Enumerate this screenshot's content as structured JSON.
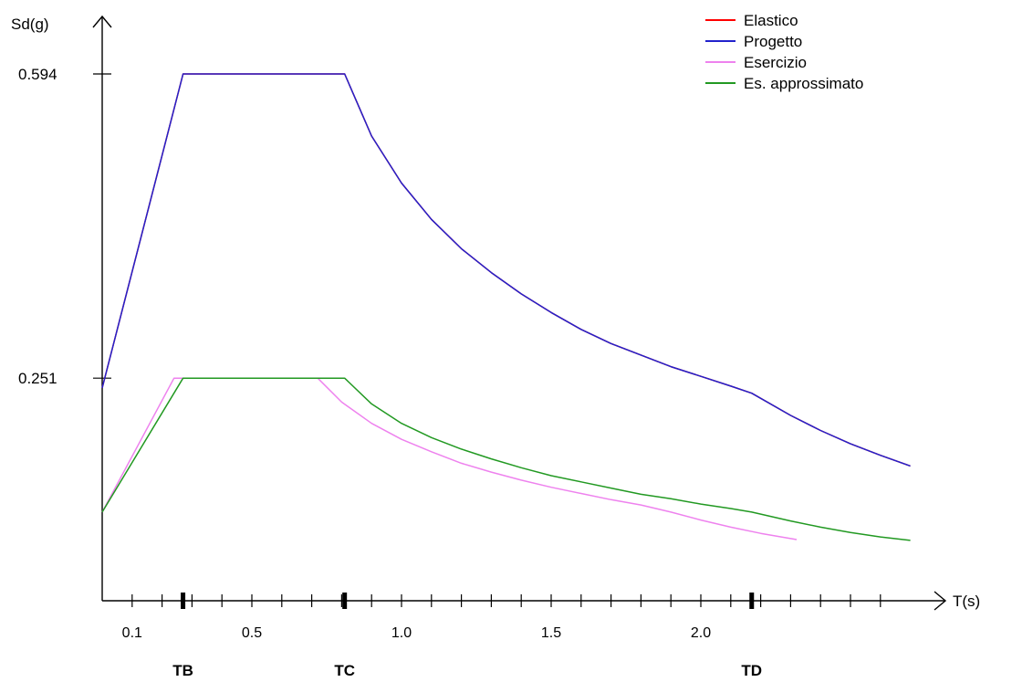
{
  "chart_data": {
    "type": "line",
    "title": "",
    "xlabel": "T(s)",
    "ylabel": "Sd(g)",
    "xlim": [
      0.0,
      2.7
    ],
    "ylim": [
      0.0,
      0.594
    ],
    "grid": false,
    "legend_position": "top-right",
    "x_tick_labels": [
      {
        "value": 0.1,
        "label": "0.1"
      },
      {
        "value": 0.5,
        "label": "0.5"
      },
      {
        "value": 1.0,
        "label": "1.0"
      },
      {
        "value": 1.5,
        "label": "1.5"
      },
      {
        "value": 2.0,
        "label": "2.0"
      }
    ],
    "x_minor_ticks": [
      0.1,
      0.2,
      0.3,
      0.4,
      0.5,
      0.6,
      0.7,
      0.8,
      0.9,
      1.0,
      1.1,
      1.2,
      1.3,
      1.4,
      1.5,
      1.6,
      1.7,
      1.8,
      1.9,
      2.0,
      2.1,
      2.2,
      2.3,
      2.4,
      2.5,
      2.6
    ],
    "y_tick_labels": [
      {
        "value": 0.251,
        "label": "0.251"
      },
      {
        "value": 0.594,
        "label": "0.594"
      }
    ],
    "period_markers": [
      {
        "label": "TB",
        "value": 0.27
      },
      {
        "label": "TC",
        "value": 0.81
      },
      {
        "label": "TD",
        "value": 2.17
      }
    ],
    "series": [
      {
        "name": "Elastico",
        "color": "#ff0000",
        "x": [
          0.0,
          0.27,
          0.81,
          0.9,
          1.0,
          1.1,
          1.2,
          1.3,
          1.4,
          1.5,
          1.6,
          1.7,
          1.8,
          1.9,
          2.0,
          2.1,
          2.17,
          2.3,
          2.4,
          2.5,
          2.6,
          2.7
        ],
        "values": [
          0.24,
          0.594,
          0.594,
          0.524,
          0.471,
          0.43,
          0.397,
          0.37,
          0.346,
          0.325,
          0.306,
          0.29,
          0.277,
          0.264,
          0.253,
          0.242,
          0.234,
          0.209,
          0.192,
          0.177,
          0.164,
          0.152
        ]
      },
      {
        "name": "Progetto",
        "color": "#2222cc",
        "x": [
          0.0,
          0.27,
          0.81,
          0.9,
          1.0,
          1.1,
          1.2,
          1.3,
          1.4,
          1.5,
          1.6,
          1.7,
          1.8,
          1.9,
          2.0,
          2.1,
          2.17,
          2.3,
          2.4,
          2.5,
          2.6,
          2.7
        ],
        "values": [
          0.24,
          0.594,
          0.594,
          0.524,
          0.471,
          0.43,
          0.397,
          0.37,
          0.346,
          0.325,
          0.306,
          0.29,
          0.277,
          0.264,
          0.253,
          0.242,
          0.234,
          0.209,
          0.192,
          0.177,
          0.164,
          0.152
        ]
      },
      {
        "name": "Esercizio",
        "color": "#ee82ee",
        "x": [
          0.0,
          0.24,
          0.72,
          0.8,
          0.9,
          1.0,
          1.1,
          1.2,
          1.3,
          1.4,
          1.5,
          1.6,
          1.7,
          1.8,
          1.9,
          2.0,
          2.1,
          2.2,
          2.32
        ],
        "values": [
          0.1,
          0.251,
          0.251,
          0.224,
          0.2,
          0.182,
          0.168,
          0.155,
          0.145,
          0.136,
          0.128,
          0.121,
          0.114,
          0.108,
          0.1,
          0.091,
          0.083,
          0.076,
          0.069
        ]
      },
      {
        "name": "Es. approssimato",
        "color": "#229922",
        "x": [
          0.0,
          0.27,
          0.81,
          0.9,
          1.0,
          1.1,
          1.2,
          1.3,
          1.4,
          1.5,
          1.6,
          1.7,
          1.8,
          1.9,
          2.0,
          2.1,
          2.17,
          2.3,
          2.4,
          2.5,
          2.6,
          2.7
        ],
        "values": [
          0.1,
          0.251,
          0.251,
          0.222,
          0.2,
          0.184,
          0.171,
          0.16,
          0.15,
          0.141,
          0.134,
          0.127,
          0.12,
          0.115,
          0.109,
          0.104,
          0.1,
          0.09,
          0.083,
          0.077,
          0.072,
          0.068
        ]
      }
    ]
  }
}
